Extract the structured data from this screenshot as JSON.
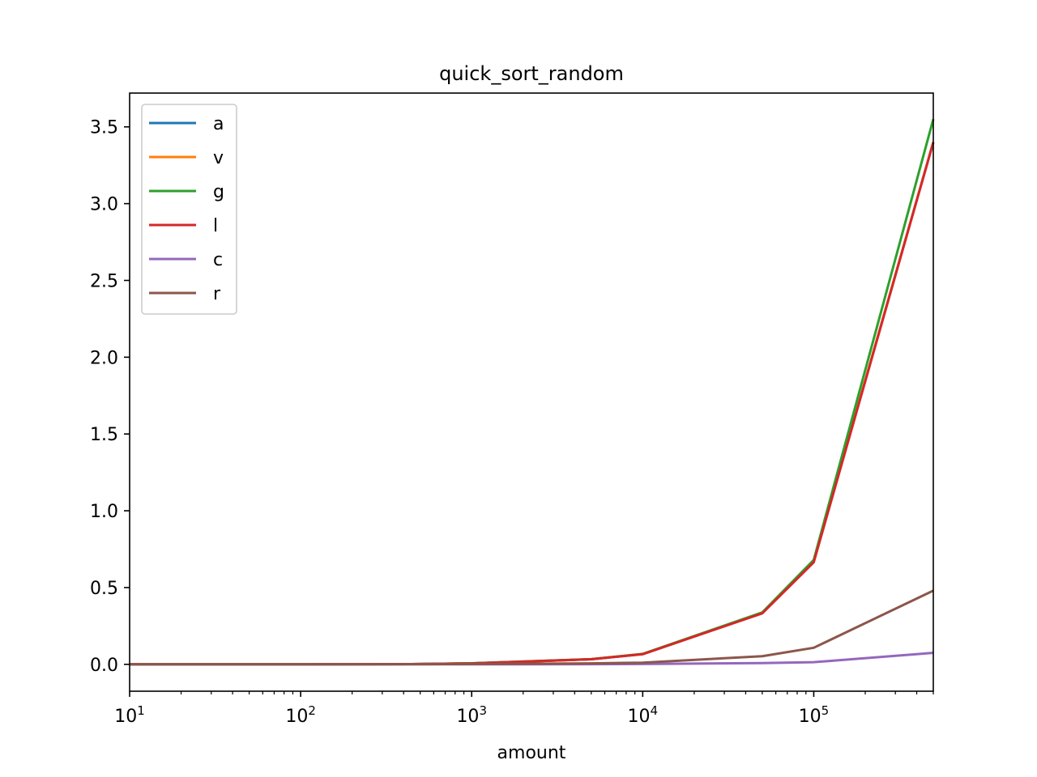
{
  "chart_data": {
    "type": "line",
    "title": "quick_sort_random",
    "xlabel": "amount",
    "ylabel": "",
    "xscale": "log",
    "xlim": [
      10,
      500000
    ],
    "ylim": [
      -0.175,
      3.72
    ],
    "x_ticks": [
      {
        "value": 10,
        "base": "10",
        "exp": "1"
      },
      {
        "value": 100,
        "base": "10",
        "exp": "2"
      },
      {
        "value": 1000,
        "base": "10",
        "exp": "3"
      },
      {
        "value": 10000,
        "base": "10",
        "exp": "4"
      },
      {
        "value": 100000,
        "base": "10",
        "exp": "5"
      }
    ],
    "y_ticks": [
      {
        "value": 0.0,
        "label": "0.0"
      },
      {
        "value": 0.5,
        "label": "0.5"
      },
      {
        "value": 1.0,
        "label": "1.0"
      },
      {
        "value": 1.5,
        "label": "1.5"
      },
      {
        "value": 2.0,
        "label": "2.0"
      },
      {
        "value": 2.5,
        "label": "2.5"
      },
      {
        "value": 3.0,
        "label": "3.0"
      },
      {
        "value": 3.5,
        "label": "3.5"
      }
    ],
    "x": [
      10,
      50,
      100,
      500,
      1000,
      5000,
      10000,
      50000,
      100000,
      500000
    ],
    "grid": false,
    "legend_position": "top-left",
    "series": [
      {
        "name": "a",
        "color": "#1f77b4",
        "values": [
          0.0,
          0.0,
          0.0,
          0.002,
          0.006,
          0.033,
          0.067,
          0.335,
          0.675,
          3.4
        ]
      },
      {
        "name": "v",
        "color": "#ff7f0e",
        "values": [
          0.0,
          0.0,
          0.0,
          0.002,
          0.006,
          0.033,
          0.067,
          0.335,
          0.675,
          3.4
        ]
      },
      {
        "name": "g",
        "color": "#2ca02c",
        "values": [
          0.0,
          0.0,
          0.0,
          0.002,
          0.007,
          0.034,
          0.068,
          0.338,
          0.68,
          3.55
        ]
      },
      {
        "name": "l",
        "color": "#d62728",
        "values": [
          0.0,
          0.0,
          0.0,
          0.002,
          0.006,
          0.033,
          0.066,
          0.332,
          0.665,
          3.4
        ]
      },
      {
        "name": "c",
        "color": "#9467bd",
        "values": [
          0.0,
          0.0,
          0.0,
          0.0,
          0.0,
          0.001,
          0.002,
          0.008,
          0.014,
          0.075
        ]
      },
      {
        "name": "r",
        "color": "#8c564b",
        "values": [
          0.0,
          0.0,
          0.0,
          0.001,
          0.002,
          0.006,
          0.011,
          0.053,
          0.108,
          0.48
        ]
      }
    ]
  }
}
